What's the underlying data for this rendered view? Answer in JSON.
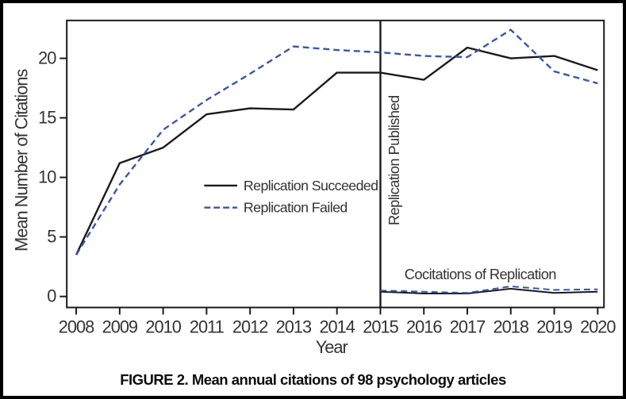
{
  "caption": "FIGURE 2. Mean annual citations of 98 psychology articles",
  "chart_data": {
    "type": "line",
    "title": "",
    "xlabel": "Year",
    "ylabel": "Mean Number of Citations",
    "x": [
      2008,
      2009,
      2010,
      2011,
      2012,
      2013,
      2014,
      2015,
      2016,
      2017,
      2018,
      2019,
      2020
    ],
    "y_ticks": [
      0,
      5,
      10,
      15,
      20
    ],
    "ylim": [
      0,
      23.2
    ],
    "grid": false,
    "legend_position": "center-left-inside",
    "series": [
      {
        "name": "Replication Succeeded",
        "style": "solid",
        "color": "#1a1a1a",
        "x": [
          2008,
          2009,
          2010,
          2011,
          2012,
          2013,
          2014,
          2015,
          2016,
          2017,
          2018,
          2019,
          2020
        ],
        "values": [
          3.5,
          11.2,
          12.5,
          15.3,
          15.8,
          15.7,
          18.8,
          18.8,
          18.2,
          20.9,
          20.0,
          20.2,
          19.0
        ]
      },
      {
        "name": "Replication Failed",
        "style": "dashed",
        "color": "#3a55a8",
        "x": [
          2008,
          2009,
          2010,
          2011,
          2012,
          2013,
          2014,
          2015,
          2016,
          2017,
          2018,
          2019,
          2020
        ],
        "values": [
          3.5,
          9.4,
          14.0,
          16.5,
          18.7,
          21.0,
          20.7,
          20.5,
          20.2,
          20.1,
          22.4,
          18.9,
          17.9
        ]
      },
      {
        "name": "Cocitations of Replication (Succeeded)",
        "style": "solid",
        "color": "#1a1a1a",
        "width": 2,
        "x": [
          2015,
          2016,
          2017,
          2018,
          2019,
          2020
        ],
        "values": [
          0.4,
          0.25,
          0.25,
          0.65,
          0.3,
          0.4
        ]
      },
      {
        "name": "Cocitations of Replication (Failed)",
        "style": "dashed",
        "color": "#3a55a8",
        "width": 2,
        "x": [
          2015,
          2016,
          2017,
          2018,
          2019,
          2020
        ],
        "values": [
          0.5,
          0.4,
          0.3,
          0.85,
          0.55,
          0.6
        ]
      }
    ],
    "annotations": {
      "vline_x": 2015,
      "vline_label": "Replication Published",
      "cocitations_label": "Cocitations of Replication"
    }
  }
}
